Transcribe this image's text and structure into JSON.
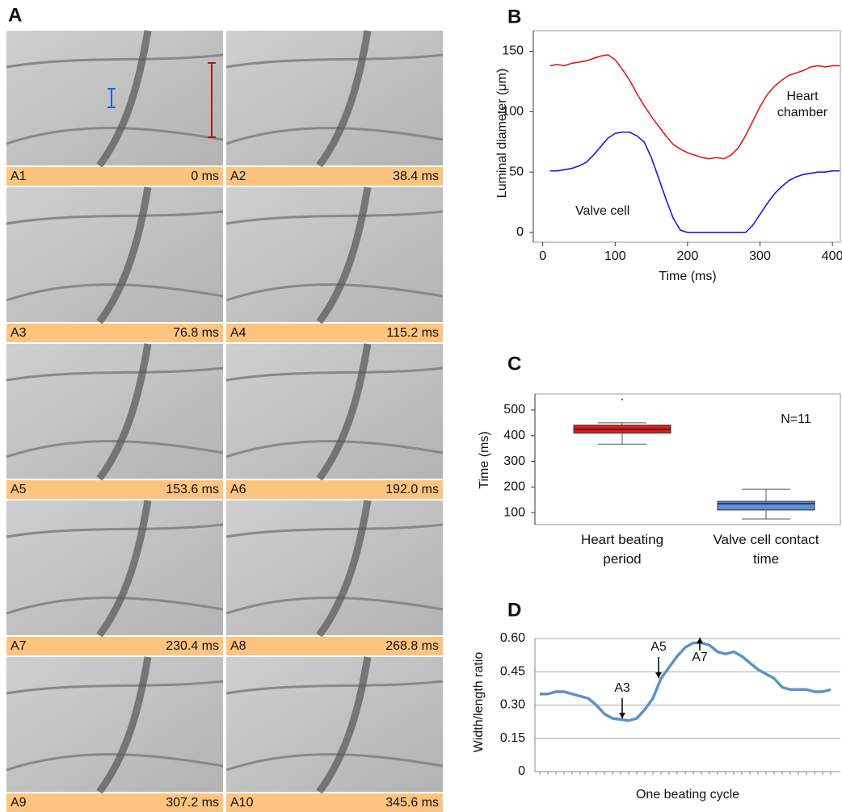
{
  "panel_a": {
    "label": "A",
    "frames": [
      {
        "label": "A1",
        "time": "0 ms"
      },
      {
        "label": "A2",
        "time": "38.4 ms"
      },
      {
        "label": "A3",
        "time": "76.8 ms"
      },
      {
        "label": "A4",
        "time": "115.2 ms"
      },
      {
        "label": "A5",
        "time": "153.6 ms"
      },
      {
        "label": "A6",
        "time": "192.0 ms"
      },
      {
        "label": "A7",
        "time": "230.4 ms"
      },
      {
        "label": "A8",
        "time": "268.8 ms"
      },
      {
        "label": "A9",
        "time": "307.2 ms"
      },
      {
        "label": "A10",
        "time": "345.6 ms"
      }
    ]
  },
  "chart_data": [
    {
      "type": "line",
      "label": "B",
      "y_label": "Luminal diameter (μm)",
      "x_label": "Time (ms)",
      "x": [
        10,
        20,
        30,
        40,
        50,
        60,
        70,
        80,
        90,
        100,
        110,
        120,
        130,
        140,
        150,
        160,
        170,
        180,
        190,
        200,
        210,
        220,
        230,
        240,
        250,
        260,
        270,
        280,
        290,
        300,
        310,
        320,
        330,
        340,
        350,
        360,
        370,
        380,
        390,
        400,
        410
      ],
      "series": [
        {
          "name": "Heart chamber",
          "color": "#e8171b",
          "values": [
            138,
            139,
            138,
            140,
            141,
            142,
            144,
            146,
            147,
            143,
            135,
            126,
            115,
            105,
            96,
            88,
            80,
            73,
            69,
            66,
            64,
            62,
            61,
            62,
            61,
            64,
            70,
            80,
            92,
            104,
            114,
            121,
            126,
            130,
            132,
            134,
            137,
            138,
            137,
            138,
            138
          ]
        },
        {
          "name": "Valve cell",
          "color": "#1a1adb",
          "values": [
            51,
            51,
            52,
            53,
            55,
            58,
            64,
            71,
            78,
            82,
            83,
            83,
            80,
            75,
            62,
            45,
            28,
            12,
            2,
            0,
            0,
            0,
            0,
            0,
            0,
            0,
            0,
            0,
            6,
            15,
            24,
            32,
            38,
            43,
            46,
            48,
            49,
            50,
            50,
            51,
            51
          ]
        }
      ],
      "xlim": [
        -13,
        411
      ],
      "ylim": [
        -8,
        167
      ],
      "xticks": [
        0,
        100,
        200,
        300,
        400
      ],
      "yticks": [
        0,
        50,
        100,
        150
      ]
    },
    {
      "type": "box",
      "label": "C",
      "y_label": "Time (ms)",
      "annotation": "N=11",
      "categories": [
        "Heart beating period",
        "Valve cell contact time"
      ],
      "boxes": [
        {
          "color": "#e8171b",
          "min": 367,
          "q1": 410,
          "median": 425,
          "q3": 441,
          "max": 450,
          "outliers": [
            541
          ]
        },
        {
          "color": "#5b8fe0",
          "min": 75,
          "q1": 110,
          "median": 135,
          "q3": 144,
          "max": 191,
          "outliers": []
        }
      ],
      "ylim": [
        53,
        563
      ],
      "yticks": [
        100,
        200,
        300,
        400,
        500
      ]
    },
    {
      "type": "line",
      "label": "D",
      "y_label": "Width/length ratio",
      "x_label": "One beating cycle",
      "color": "#5a93c8",
      "categories": [
        null,
        null,
        null,
        null,
        null,
        null,
        null,
        null,
        null,
        null,
        null,
        null,
        null,
        null,
        null,
        null,
        null,
        null,
        null,
        null,
        null,
        null,
        null,
        null,
        null,
        null,
        null,
        null,
        null,
        null,
        null,
        null,
        null,
        null,
        null,
        null,
        null
      ],
      "values": [
        0.35,
        0.35,
        0.36,
        0.36,
        0.35,
        0.34,
        0.33,
        0.3,
        0.26,
        0.24,
        0.235,
        0.23,
        0.24,
        0.28,
        0.33,
        0.42,
        0.47,
        0.52,
        0.56,
        0.58,
        0.58,
        0.57,
        0.54,
        0.53,
        0.54,
        0.52,
        0.49,
        0.46,
        0.44,
        0.42,
        0.38,
        0.37,
        0.37,
        0.37,
        0.36,
        0.36,
        0.37
      ],
      "annotations": [
        "A3",
        "A5",
        "A7"
      ],
      "ylim": [
        0,
        0.6
      ],
      "yticks": [
        0,
        0.15,
        {
          "value": 0.3,
          "label": "0.30"
        },
        0.45,
        {
          "value": 0.6,
          "label": "0.60"
        }
      ],
      "grid": true
    }
  ]
}
